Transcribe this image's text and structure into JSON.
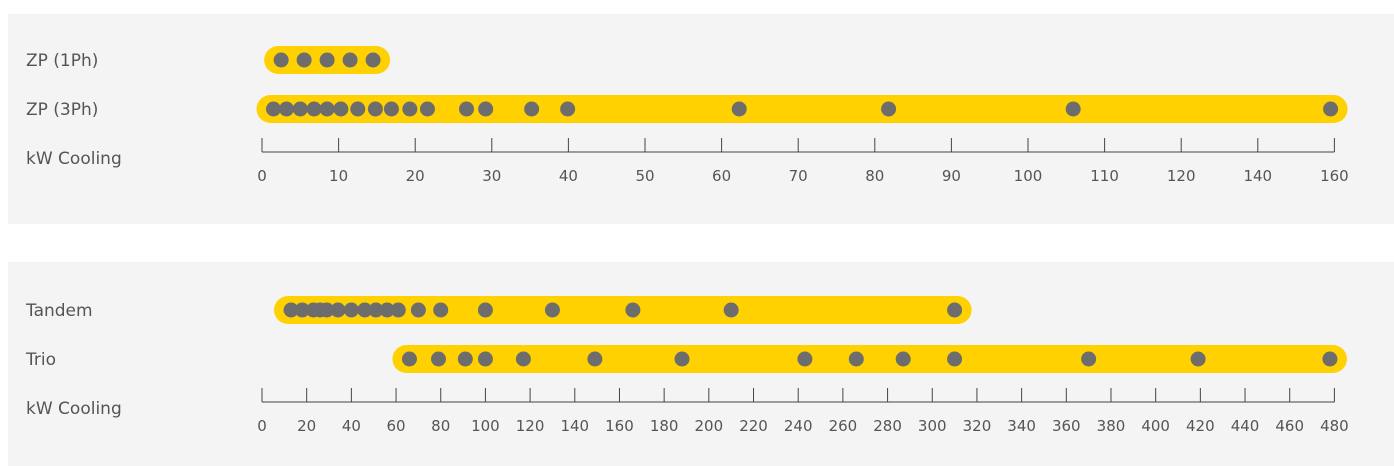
{
  "colors": {
    "background": "#f4f4f4",
    "band": "#ffd100",
    "dot": "#6d6d6d",
    "axis": "#444444",
    "text": "#555555"
  },
  "chart_data": [
    {
      "type": "scatter",
      "xlabel": "kW Cooling",
      "xlim": [
        0,
        160
      ],
      "xticks": [
        0,
        10,
        20,
        30,
        40,
        50,
        60,
        70,
        80,
        90,
        100,
        110,
        120,
        140,
        160
      ],
      "series": [
        {
          "name": "ZP (1Ph)",
          "values": [
            2.5,
            5.5,
            8.5,
            11.5,
            14.5
          ]
        },
        {
          "name": "ZP (3Ph)",
          "values": [
            1.5,
            3.2,
            5,
            6.8,
            8.5,
            10.3,
            12.5,
            14.8,
            16.9,
            19.3,
            21.6,
            26.7,
            29.2,
            35.2,
            39.9,
            62.3,
            81.8,
            105.9,
            159
          ]
        }
      ]
    },
    {
      "type": "scatter",
      "xlabel": "kW Cooling",
      "xlim": [
        0,
        480
      ],
      "xticks": [
        0,
        20,
        40,
        60,
        80,
        100,
        120,
        140,
        160,
        180,
        200,
        220,
        240,
        260,
        280,
        300,
        320,
        340,
        360,
        380,
        400,
        420,
        440,
        460,
        480
      ],
      "series": [
        {
          "name": "Tandem",
          "values": [
            13,
            18,
            23,
            26,
            29,
            34,
            40,
            46,
            51,
            56,
            61,
            70,
            80,
            100,
            130,
            166,
            210,
            310
          ]
        },
        {
          "name": "Trio",
          "values": [
            66,
            79,
            91,
            100,
            117,
            149,
            188,
            243,
            266,
            287,
            310,
            370,
            419,
            478
          ]
        }
      ]
    }
  ]
}
